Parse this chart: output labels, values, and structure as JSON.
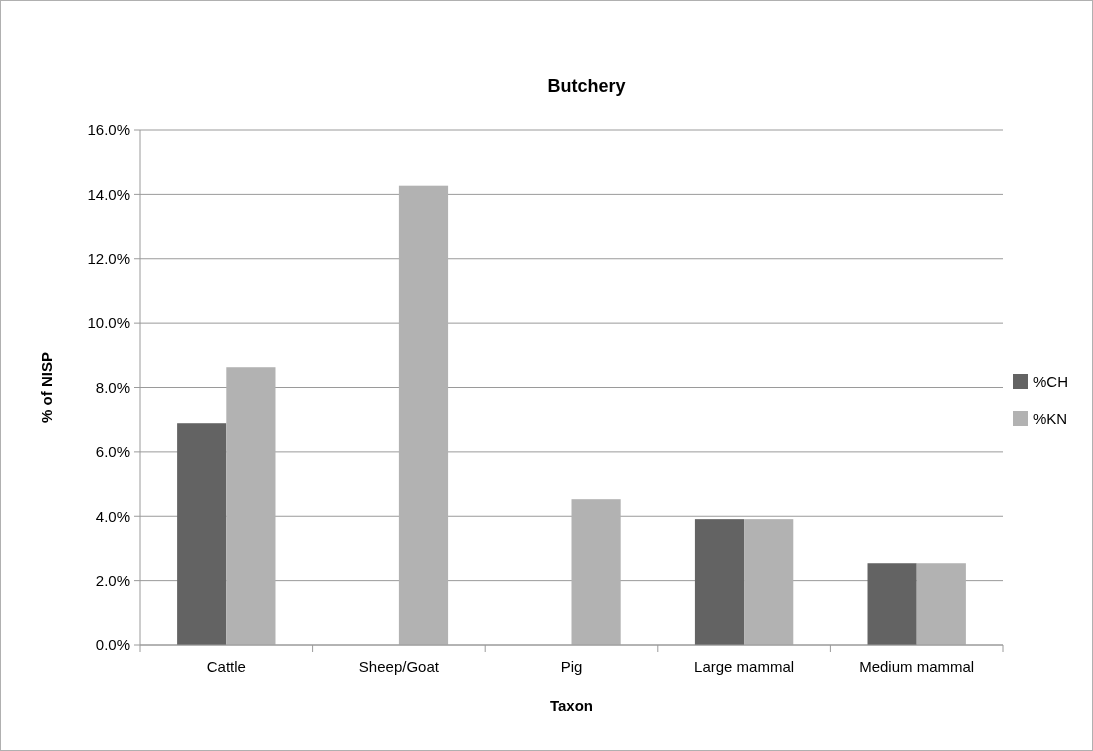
{
  "chart_data": {
    "type": "bar",
    "title": "Butchery",
    "xlabel": "Taxon",
    "ylabel": "% of NISP",
    "categories": [
      "Cattle",
      "Sheep/Goat",
      "Pig",
      "Large mammal",
      "Medium mammal"
    ],
    "series": [
      {
        "name": "%CH",
        "color": "#636363",
        "values": [
          6.89,
          0,
          0,
          3.91,
          2.54
        ]
      },
      {
        "name": "%KN",
        "color": "#b2b2b2",
        "values": [
          8.63,
          14.27,
          4.53,
          3.91,
          2.54
        ]
      }
    ],
    "ylim": [
      0,
      16
    ],
    "yticks": [
      {
        "value": 0,
        "label": "0.0%"
      },
      {
        "value": 2,
        "label": "2.0%"
      },
      {
        "value": 4,
        "label": "4.0%"
      },
      {
        "value": 6,
        "label": "6.0%"
      },
      {
        "value": 8,
        "label": "8.0%"
      },
      {
        "value": 10,
        "label": "10.0%"
      },
      {
        "value": 12,
        "label": "12.0%"
      },
      {
        "value": 14,
        "label": "14.0%"
      },
      {
        "value": 16,
        "label": "16.0%"
      }
    ],
    "grid": "y",
    "legend": "right"
  }
}
